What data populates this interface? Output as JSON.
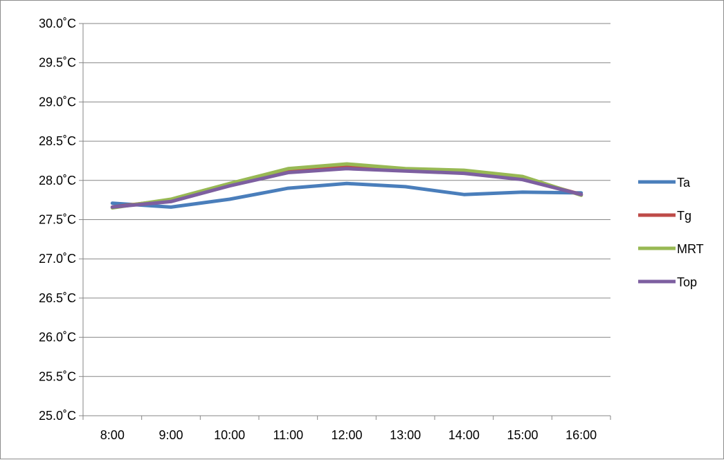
{
  "chart_data": {
    "type": "line",
    "title": "",
    "xlabel": "",
    "ylabel": "",
    "categories": [
      "8:00",
      "9:00",
      "10:00",
      "11:00",
      "12:00",
      "13:00",
      "14:00",
      "15:00",
      "16:00"
    ],
    "ylim": [
      25.0,
      30.0
    ],
    "yticks": [
      "25.0˚C",
      "25.5˚C",
      "26.0˚C",
      "26.5˚C",
      "27.0˚C",
      "27.5˚C",
      "28.0˚C",
      "28.5˚C",
      "29.0˚C",
      "29.5˚C",
      "30.0˚C"
    ],
    "grid": true,
    "legend_position": "right",
    "series": [
      {
        "name": "Ta",
        "color": "#4a7ebb",
        "values": [
          27.71,
          27.66,
          27.76,
          27.9,
          27.96,
          27.92,
          27.82,
          27.85,
          27.84
        ]
      },
      {
        "name": "Tg",
        "color": "#be4b48",
        "values": [
          27.66,
          27.75,
          27.94,
          28.12,
          28.17,
          28.13,
          28.11,
          28.03,
          27.82
        ]
      },
      {
        "name": "MRT",
        "color": "#98b954",
        "values": [
          27.65,
          27.76,
          27.96,
          28.15,
          28.21,
          28.15,
          28.13,
          28.05,
          27.81
        ]
      },
      {
        "name": "Top",
        "color": "#7d5fa0",
        "values": [
          27.66,
          27.73,
          27.93,
          28.1,
          28.15,
          28.12,
          28.09,
          28.01,
          27.82
        ]
      }
    ]
  }
}
